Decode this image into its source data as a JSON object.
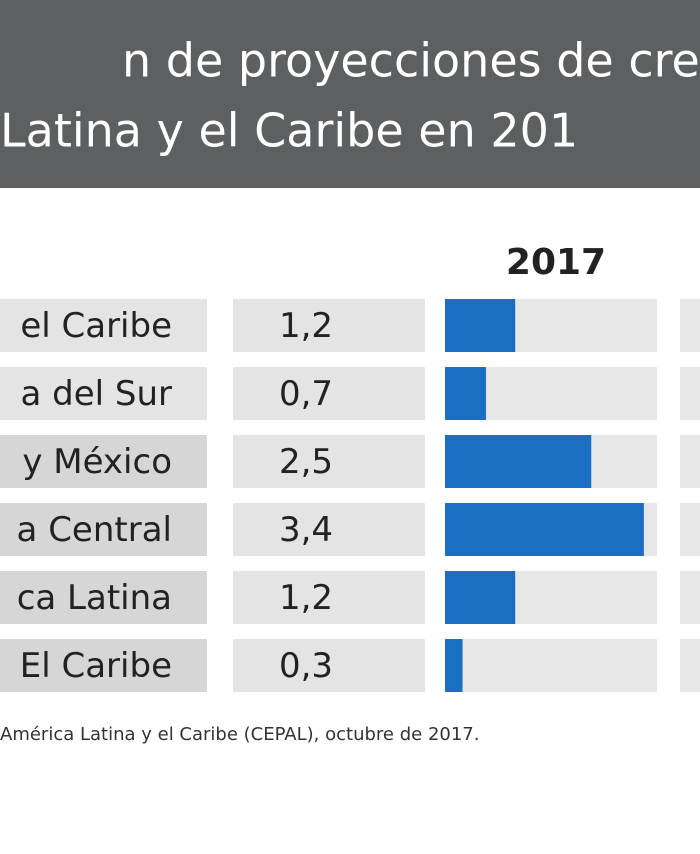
{
  "chart_data": {
    "type": "bar",
    "title_lines": [
      "n de proyecciones de cre",
      "Latina y el Caribe en 201"
    ],
    "column_header": "2017",
    "categories": [
      "el Caribe",
      "a del Sur",
      "y México",
      "a Central",
      "ca Latina",
      "El Caribe"
    ],
    "values": [
      1.2,
      0.7,
      2.5,
      3.4,
      1.2,
      0.3
    ],
    "value_labels": [
      "1,2",
      "0,7",
      "2,5",
      "3,4",
      "1,2",
      "0,3"
    ],
    "color": "#1a6fc4",
    "source": "América Latina y el Caribe (CEPAL), octubre de 2017."
  }
}
